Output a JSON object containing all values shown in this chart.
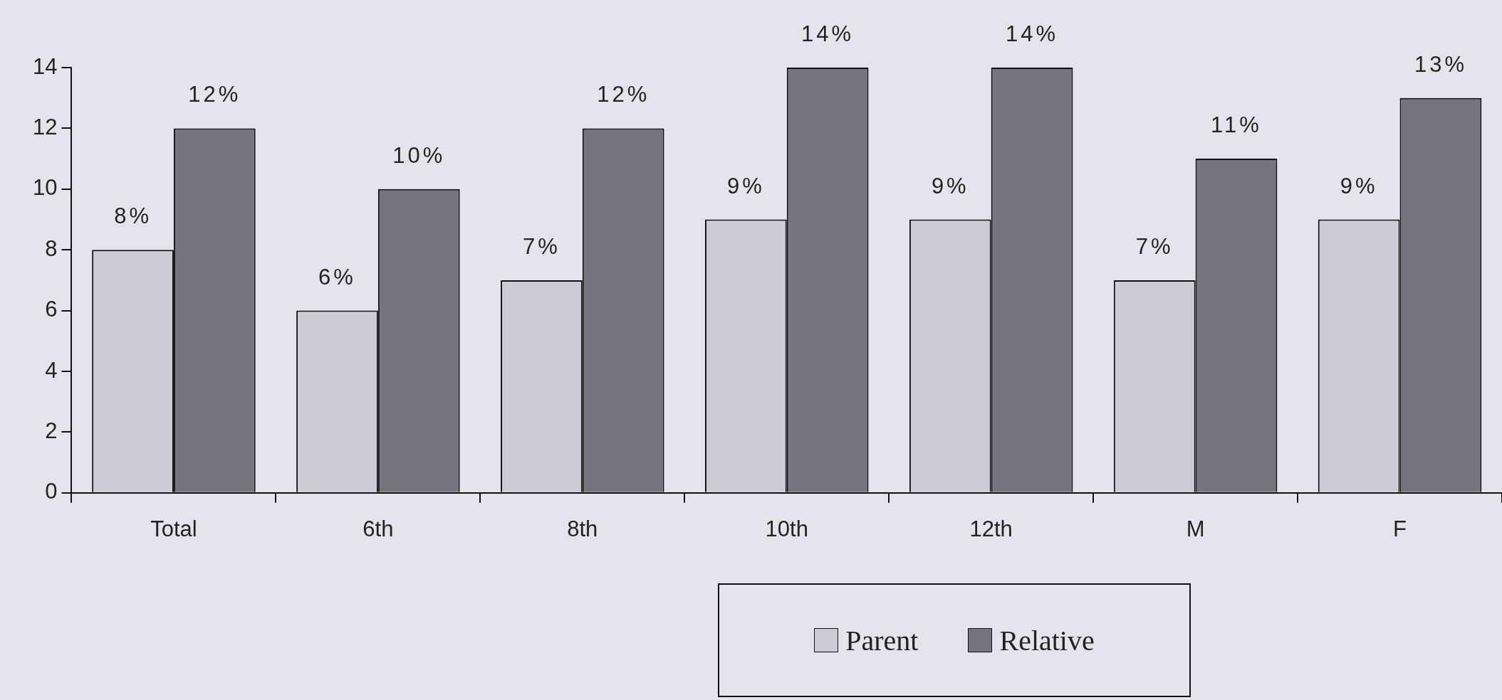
{
  "chart_data": {
    "type": "bar",
    "categories": [
      "Total",
      "6th",
      "8th",
      "10th",
      "12th",
      "M",
      "F"
    ],
    "series": [
      {
        "name": "Parent",
        "color": "#cdcbd6",
        "values": [
          8,
          6,
          7,
          9,
          9,
          7,
          9
        ],
        "value_labels": [
          "8%",
          "6%",
          "7%",
          "9%",
          "9%",
          "7%",
          "9%"
        ]
      },
      {
        "name": "Relative",
        "color": "#77737f",
        "values": [
          12,
          10,
          12,
          14,
          14,
          11,
          13
        ],
        "value_labels": [
          "12%",
          "10%",
          "12%",
          "14%",
          "14%",
          "11%",
          "13%"
        ]
      }
    ],
    "ylim": [
      0,
      14
    ],
    "yticks": [
      0,
      2,
      4,
      6,
      8,
      10,
      12,
      14
    ],
    "grid": false,
    "legend": "bottom"
  }
}
